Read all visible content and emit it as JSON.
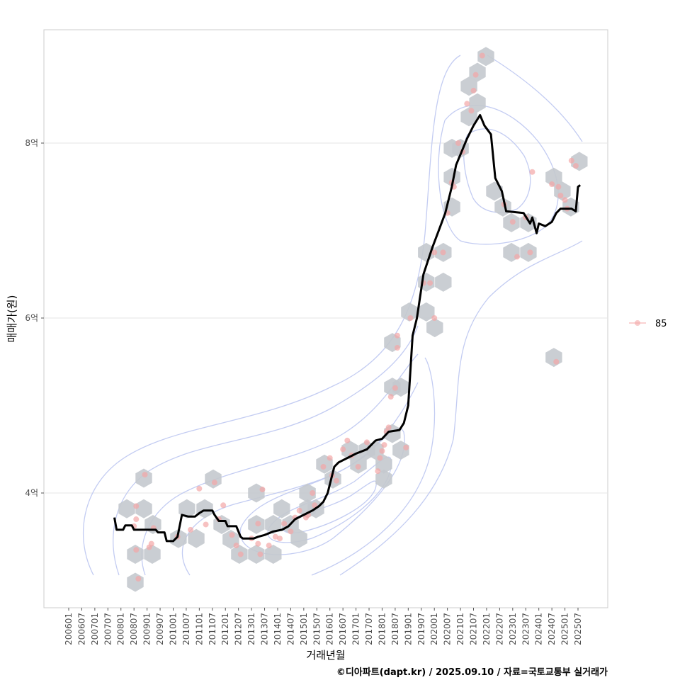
{
  "chart_data": {
    "type": "line",
    "title": "",
    "xlabel": "거래년월",
    "ylabel": "매매가(원)",
    "caption": "©디아파트(dapt.kr) / 2025.09.10 / 자료=국토교통부 실거래가",
    "x_unit": "months since 200601",
    "xlim": [
      -11,
      248
    ],
    "ylim": [
      2.68,
      9.3
    ],
    "grid": true,
    "y_ticks": [
      {
        "value": 4,
        "label": "4억"
      },
      {
        "value": 6,
        "label": "6억"
      },
      {
        "value": 8,
        "label": "8억"
      }
    ],
    "x_ticks": [
      "200601",
      "200607",
      "200701",
      "200707",
      "200801",
      "200807",
      "200901",
      "200907",
      "201001",
      "201007",
      "201101",
      "201107",
      "201201",
      "201207",
      "201301",
      "201307",
      "201401",
      "201407",
      "201501",
      "201507",
      "201601",
      "201607",
      "201701",
      "201707",
      "201801",
      "201807",
      "201901",
      "201907",
      "202001",
      "202007",
      "202101",
      "202107",
      "202201",
      "202207",
      "202301",
      "202307",
      "202401",
      "202407",
      "202501",
      "202507"
    ],
    "legend": {
      "placement": "right",
      "entries": [
        {
          "label": "85",
          "color": "#f4a6a6"
        }
      ]
    },
    "colors": {
      "line": "#000000",
      "hex": "#c4c9ce",
      "point": "#f4a6a6",
      "contour": "#c3ccf2",
      "grid": "#e6e6e6"
    },
    "median_line": [
      [
        21,
        3.72
      ],
      [
        22,
        3.58
      ],
      [
        25,
        3.58
      ],
      [
        26,
        3.63
      ],
      [
        29,
        3.63
      ],
      [
        30,
        3.58
      ],
      [
        40,
        3.58
      ],
      [
        41,
        3.55
      ],
      [
        44,
        3.55
      ],
      [
        45,
        3.45
      ],
      [
        48,
        3.45
      ],
      [
        50,
        3.5
      ],
      [
        52,
        3.75
      ],
      [
        55,
        3.73
      ],
      [
        58,
        3.73
      ],
      [
        60,
        3.77
      ],
      [
        62,
        3.8
      ],
      [
        66,
        3.8
      ],
      [
        67,
        3.75
      ],
      [
        69,
        3.68
      ],
      [
        72,
        3.68
      ],
      [
        73,
        3.62
      ],
      [
        77,
        3.62
      ],
      [
        79,
        3.5
      ],
      [
        80,
        3.48
      ],
      [
        85,
        3.48
      ],
      [
        87,
        3.5
      ],
      [
        90,
        3.52
      ],
      [
        94,
        3.56
      ],
      [
        98,
        3.58
      ],
      [
        101,
        3.62
      ],
      [
        104,
        3.7
      ],
      [
        108,
        3.75
      ],
      [
        112,
        3.8
      ],
      [
        115,
        3.85
      ],
      [
        117,
        3.9
      ],
      [
        119,
        4.0
      ],
      [
        122,
        4.3
      ],
      [
        124,
        4.35
      ],
      [
        128,
        4.4
      ],
      [
        132,
        4.45
      ],
      [
        137,
        4.5
      ],
      [
        141,
        4.6
      ],
      [
        144,
        4.62
      ],
      [
        147,
        4.7
      ],
      [
        152,
        4.72
      ],
      [
        154,
        4.8
      ],
      [
        156,
        5.0
      ],
      [
        158,
        5.8
      ],
      [
        160,
        6.0
      ],
      [
        163,
        6.5
      ],
      [
        167,
        6.8
      ],
      [
        170,
        7.0
      ],
      [
        173,
        7.2
      ],
      [
        176,
        7.5
      ],
      [
        178,
        7.75
      ],
      [
        183,
        8.05
      ],
      [
        186,
        8.2
      ],
      [
        189,
        8.32
      ],
      [
        191,
        8.2
      ],
      [
        194,
        8.1
      ],
      [
        196,
        7.6
      ],
      [
        199,
        7.45
      ],
      [
        201,
        7.22
      ],
      [
        209,
        7.2
      ],
      [
        212,
        7.08
      ],
      [
        213,
        7.15
      ],
      [
        215,
        6.97
      ],
      [
        216,
        7.08
      ],
      [
        219,
        7.05
      ],
      [
        222,
        7.1
      ],
      [
        224,
        7.2
      ],
      [
        226,
        7.25
      ],
      [
        231,
        7.25
      ],
      [
        233,
        7.22
      ],
      [
        234,
        7.5
      ],
      [
        235,
        7.52
      ]
    ],
    "hexbins": [
      [
        26.7,
        3.82
      ],
      [
        34.5,
        3.82
      ],
      [
        34.5,
        4.17
      ],
      [
        30.6,
        3.3
      ],
      [
        38.7,
        3.64
      ],
      [
        30.6,
        2.98
      ],
      [
        38.4,
        3.3
      ],
      [
        50.4,
        3.48
      ],
      [
        58.6,
        3.48
      ],
      [
        54.3,
        3.82
      ],
      [
        66.4,
        4.16
      ],
      [
        62.5,
        3.82
      ],
      [
        70.3,
        3.64
      ],
      [
        74.5,
        3.47
      ],
      [
        78.4,
        3.3
      ],
      [
        86.2,
        3.3
      ],
      [
        94,
        3.3
      ],
      [
        86.2,
        3.64
      ],
      [
        94,
        3.64
      ],
      [
        97.9,
        3.82
      ],
      [
        86.2,
        4.0
      ],
      [
        105.8,
        3.48
      ],
      [
        101.9,
        3.64
      ],
      [
        109.7,
        3.82
      ],
      [
        109.7,
        4.0
      ],
      [
        117.5,
        4.33
      ],
      [
        113.6,
        3.82
      ],
      [
        121.4,
        4.16
      ],
      [
        129.2,
        4.49
      ],
      [
        137,
        4.49
      ],
      [
        133.1,
        4.33
      ],
      [
        140.9,
        4.49
      ],
      [
        144.8,
        4.16
      ],
      [
        144.8,
        4.33
      ],
      [
        152.6,
        4.49
      ],
      [
        148.7,
        4.68
      ],
      [
        148.7,
        5.21
      ],
      [
        152.6,
        5.21
      ],
      [
        148.7,
        5.72
      ],
      [
        156.5,
        6.07
      ],
      [
        164.3,
        6.07
      ],
      [
        168.2,
        5.89
      ],
      [
        164.3,
        6.75
      ],
      [
        172.1,
        6.75
      ],
      [
        164.3,
        6.41
      ],
      [
        172.1,
        6.41
      ],
      [
        176.1,
        7.61
      ],
      [
        176.1,
        7.94
      ],
      [
        176.1,
        7.27
      ],
      [
        180,
        7.94
      ],
      [
        183.9,
        8.3
      ],
      [
        183.9,
        8.65
      ],
      [
        187.8,
        8.81
      ],
      [
        191.7,
        8.99
      ],
      [
        187.8,
        8.46
      ],
      [
        195.6,
        7.45
      ],
      [
        199.5,
        7.27
      ],
      [
        203.4,
        7.09
      ],
      [
        203.4,
        6.75
      ],
      [
        211.2,
        6.75
      ],
      [
        211.2,
        7.09
      ],
      [
        222.9,
        7.61
      ],
      [
        226.8,
        7.45
      ],
      [
        230.7,
        7.27
      ],
      [
        234.6,
        7.79
      ],
      [
        222.9,
        5.55
      ]
    ],
    "points": [
      [
        30,
        3.62
      ],
      [
        31,
        3.7
      ],
      [
        31,
        3.85
      ],
      [
        31,
        3.35
      ],
      [
        32,
        3.02
      ],
      [
        35,
        4.21
      ],
      [
        37,
        3.38
      ],
      [
        38,
        3.42
      ],
      [
        39,
        3.6
      ],
      [
        50,
        3.5
      ],
      [
        56,
        3.58
      ],
      [
        60,
        4.05
      ],
      [
        63,
        3.64
      ],
      [
        67,
        4.12
      ],
      [
        69,
        3.7
      ],
      [
        71,
        3.86
      ],
      [
        75,
        3.52
      ],
      [
        77,
        3.4
      ],
      [
        79,
        3.3
      ],
      [
        84,
        3.48
      ],
      [
        87,
        3.65
      ],
      [
        87,
        3.42
      ],
      [
        88,
        3.3
      ],
      [
        89,
        4.04
      ],
      [
        92,
        3.4
      ],
      [
        95,
        3.5
      ],
      [
        97,
        3.48
      ],
      [
        99,
        3.65
      ],
      [
        102,
        3.56
      ],
      [
        104,
        3.72
      ],
      [
        106,
        3.8
      ],
      [
        109,
        3.72
      ],
      [
        110,
        3.75
      ],
      [
        112,
        4.0
      ],
      [
        113,
        3.86
      ],
      [
        117,
        4.3
      ],
      [
        120,
        4.4
      ],
      [
        121,
        4.2
      ],
      [
        123,
        4.14
      ],
      [
        126,
        4.5
      ],
      [
        128,
        4.6
      ],
      [
        130,
        4.43
      ],
      [
        133,
        4.3
      ],
      [
        137,
        4.58
      ],
      [
        142,
        4.25
      ],
      [
        143,
        4.4
      ],
      [
        144,
        4.48
      ],
      [
        145,
        4.55
      ],
      [
        146,
        4.7
      ],
      [
        147,
        4.75
      ],
      [
        148,
        5.1
      ],
      [
        150,
        5.2
      ],
      [
        151,
        5.8
      ],
      [
        151,
        5.66
      ],
      [
        155,
        4.52
      ],
      [
        157,
        6.0
      ],
      [
        163,
        6.4
      ],
      [
        166,
        6.4
      ],
      [
        168,
        6.0
      ],
      [
        168,
        6.75
      ],
      [
        172,
        6.75
      ],
      [
        174,
        7.2
      ],
      [
        176,
        7.55
      ],
      [
        177,
        7.5
      ],
      [
        179,
        8.0
      ],
      [
        181,
        7.9
      ],
      [
        183,
        8.45
      ],
      [
        185,
        8.37
      ],
      [
        186,
        8.6
      ],
      [
        187,
        8.78
      ],
      [
        190,
        9.0
      ],
      [
        200,
        7.3
      ],
      [
        204,
        7.1
      ],
      [
        206,
        6.7
      ],
      [
        210,
        7.15
      ],
      [
        212,
        6.75
      ],
      [
        213,
        7.67
      ],
      [
        222,
        7.53
      ],
      [
        225,
        7.5
      ],
      [
        226,
        7.4
      ],
      [
        228,
        7.35
      ],
      [
        229,
        7.25
      ],
      [
        231,
        7.8
      ],
      [
        233,
        7.74
      ],
      [
        224,
        5.5
      ]
    ]
  }
}
